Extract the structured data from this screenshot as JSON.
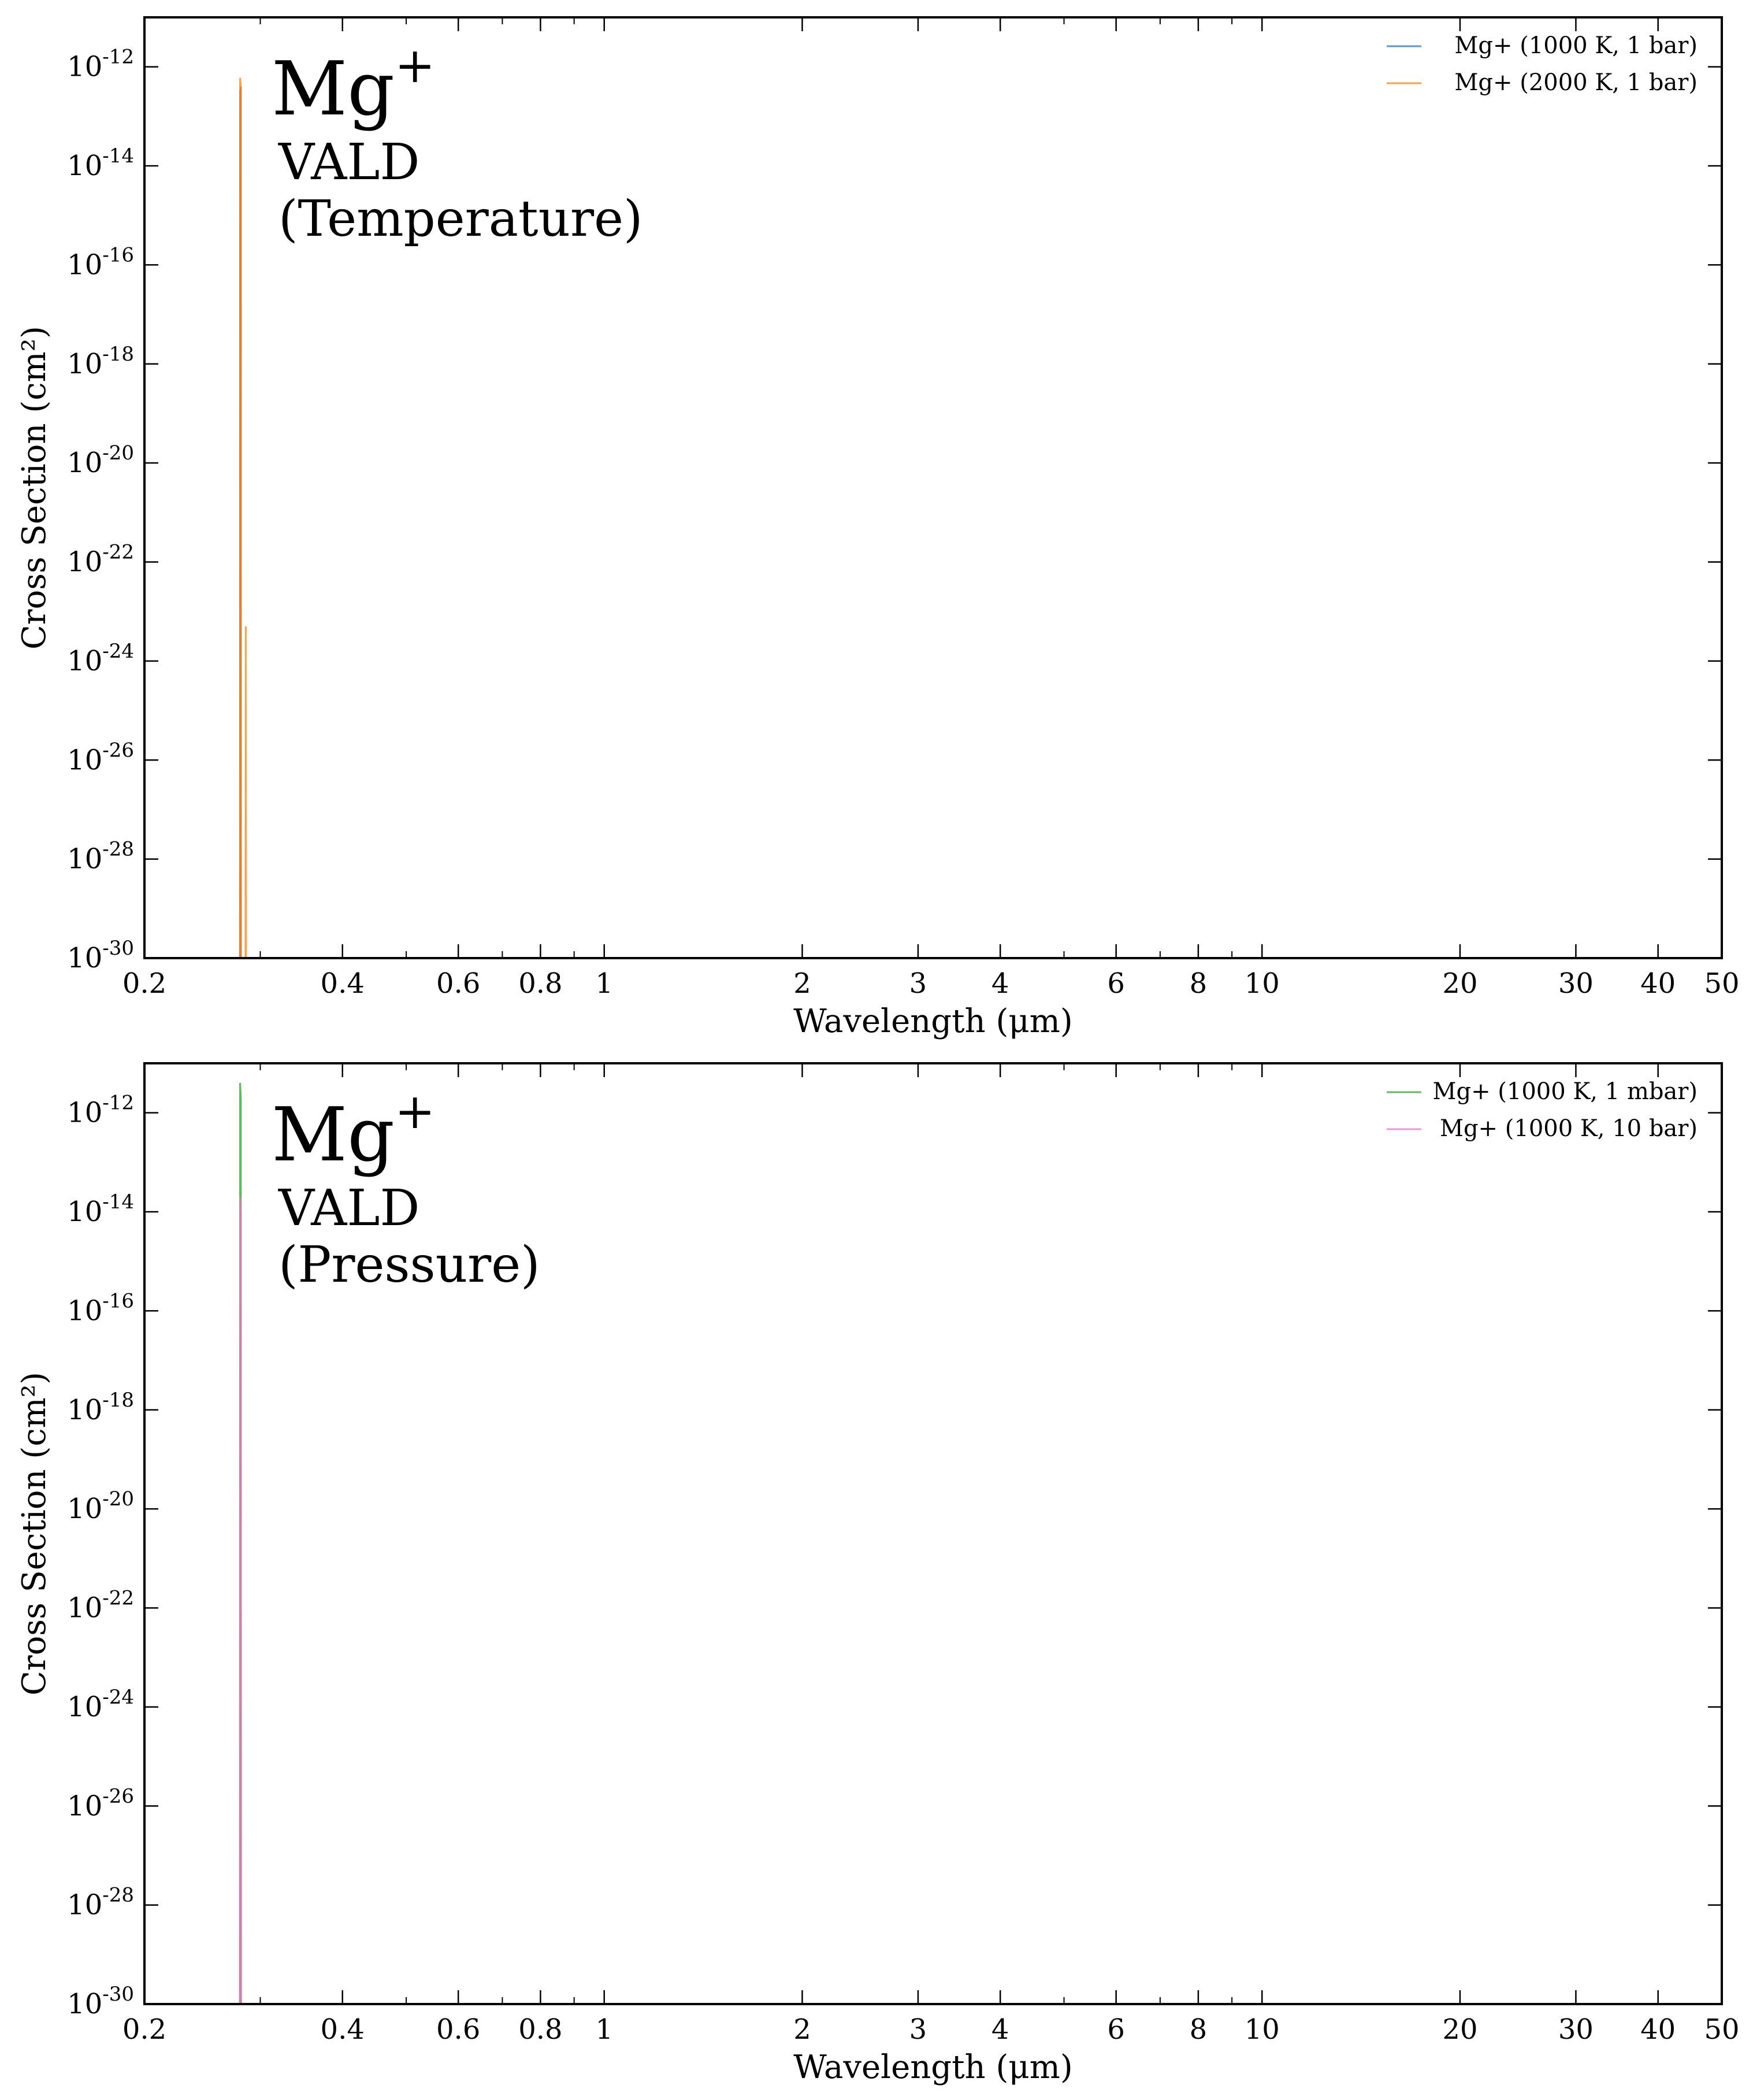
{
  "chart_data": [
    {
      "type": "line",
      "xscale": "log",
      "yscale": "log",
      "xlim": [
        0.2,
        50
      ],
      "ylim": [
        1e-30,
        1e-11
      ],
      "xlabel": "Wavelength (μm)",
      "ylabel": "Cross Section (cm²)",
      "xticks": [
        0.2,
        0.4,
        0.6,
        0.8,
        1,
        2,
        3,
        4,
        6,
        8,
        10,
        20,
        30,
        40,
        50
      ],
      "xtick_labels": [
        "0.2",
        "0.4",
        "0.6",
        "0.8",
        "1",
        "2",
        "3",
        "4",
        "6",
        "8",
        "10",
        "20",
        "30",
        "40",
        "50"
      ],
      "yticks": [
        1e-12,
        1e-14,
        1e-16,
        1e-18,
        1e-20,
        1e-22,
        1e-24,
        1e-26,
        1e-28,
        1e-30
      ],
      "ytick_base": "10",
      "ytick_exponents": [
        "-12",
        "-14",
        "-16",
        "-18",
        "-20",
        "-22",
        "-24",
        "-26",
        "-28",
        "-30"
      ],
      "annotation": {
        "species": "Mg",
        "charge": "+",
        "database": "VALD",
        "variant": "(Temperature)"
      },
      "legend_position": "upper right",
      "series": [
        {
          "name": "Mg+ (1000 K, 1 bar)",
          "color": "#1f77b4",
          "points": [
            [
              0.2795,
              1e-30
            ],
            [
              0.27955,
              3e-13
            ],
            [
              0.28025,
              4e-13
            ],
            [
              0.2803,
              1e-30
            ]
          ]
        },
        {
          "name": "Mg+ (2000 K, 1 bar)",
          "color": "#ff7f0e",
          "points": [
            [
              0.2794,
              1e-30
            ],
            [
              0.27955,
              6e-13
            ],
            [
              0.28025,
              4e-13
            ],
            [
              0.2804,
              1e-30
            ],
            [
              0.2849,
              1e-30
            ],
            [
              0.28515,
              5e-24
            ],
            [
              0.2854,
              1e-30
            ]
          ]
        }
      ]
    },
    {
      "type": "line",
      "xscale": "log",
      "yscale": "log",
      "xlim": [
        0.2,
        50
      ],
      "ylim": [
        1e-30,
        1e-11
      ],
      "xlabel": "Wavelength (μm)",
      "ylabel": "Cross Section (cm²)",
      "xticks": [
        0.2,
        0.4,
        0.6,
        0.8,
        1,
        2,
        3,
        4,
        6,
        8,
        10,
        20,
        30,
        40,
        50
      ],
      "xtick_labels": [
        "0.2",
        "0.4",
        "0.6",
        "0.8",
        "1",
        "2",
        "3",
        "4",
        "6",
        "8",
        "10",
        "20",
        "30",
        "40",
        "50"
      ],
      "yticks": [
        1e-12,
        1e-14,
        1e-16,
        1e-18,
        1e-20,
        1e-22,
        1e-24,
        1e-26,
        1e-28,
        1e-30
      ],
      "ytick_base": "10",
      "ytick_exponents": [
        "-12",
        "-14",
        "-16",
        "-18",
        "-20",
        "-22",
        "-24",
        "-26",
        "-28",
        "-30"
      ],
      "annotation": {
        "species": "Mg",
        "charge": "+",
        "database": "VALD",
        "variant": "(Pressure)"
      },
      "legend_position": "upper right",
      "series": [
        {
          "name": "Mg+ (1000 K, 1 mbar)",
          "color": "#2ca02c",
          "points": [
            [
              0.2794,
              1e-30
            ],
            [
              0.27955,
              4e-12
            ],
            [
              0.28025,
              2e-12
            ],
            [
              0.2804,
              1e-30
            ]
          ]
        },
        {
          "name": "Mg+ (1000 K, 10 bar)",
          "color": "#e377c2",
          "points": [
            [
              0.2793,
              1e-30
            ],
            [
              0.27955,
              2e-14
            ],
            [
              0.28025,
              1e-14
            ],
            [
              0.2805,
              1e-30
            ]
          ]
        }
      ]
    }
  ]
}
